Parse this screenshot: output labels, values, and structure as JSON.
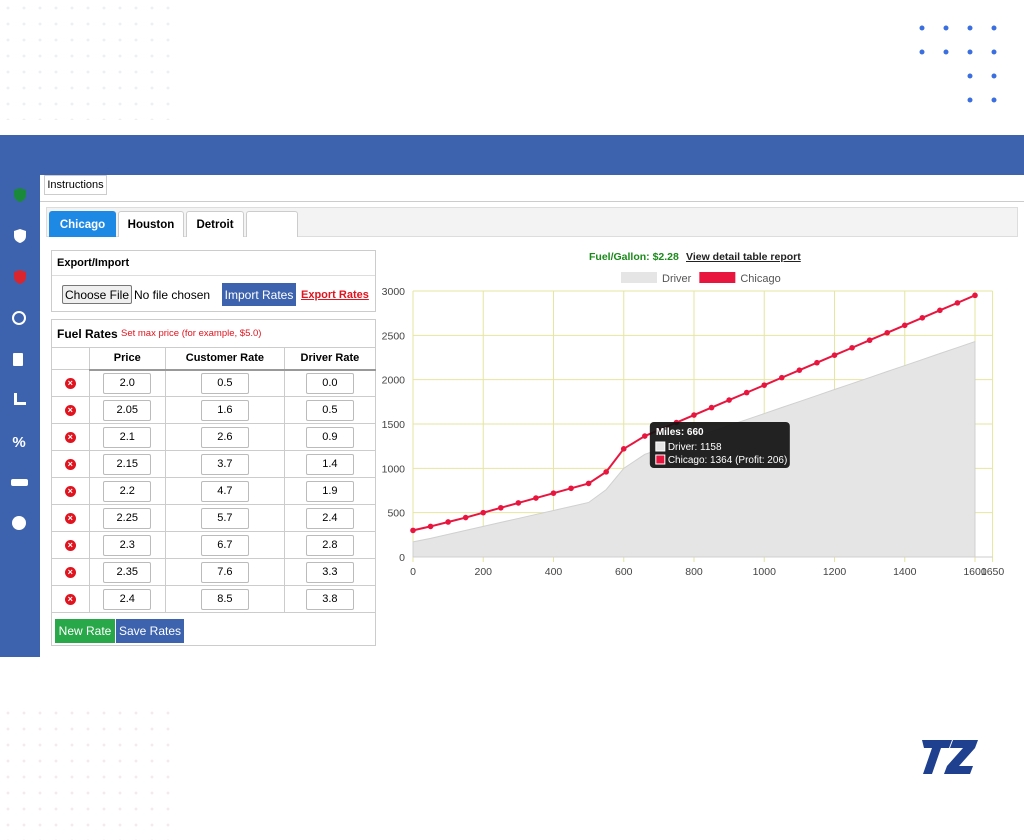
{
  "toolbar": {
    "instructions": "Instructions"
  },
  "tabs": [
    "Chicago",
    "Houston",
    "Detroit",
    ""
  ],
  "export_import": {
    "title": "Export/Import",
    "choose_file": "Choose File",
    "file_status": "No file chosen",
    "import_button": "Import Rates",
    "export_link": "Export Rates"
  },
  "fuel_rates": {
    "title": "Fuel Rates",
    "hint": "Set max price (for example, $5.0)",
    "table": {
      "header": [
        "Price",
        "Customer Rate",
        "Driver Rate"
      ],
      "rows": [
        [
          "2.0",
          "0.5",
          "0.0"
        ],
        [
          "2.05",
          "1.6",
          "0.5"
        ],
        [
          "2.1",
          "2.6",
          "0.9"
        ],
        [
          "2.15",
          "3.7",
          "1.4"
        ],
        [
          "2.2",
          "4.7",
          "1.9"
        ],
        [
          "2.25",
          "5.7",
          "2.4"
        ],
        [
          "2.3",
          "6.7",
          "2.8"
        ],
        [
          "2.35",
          "7.6",
          "3.3"
        ],
        [
          "2.4",
          "8.5",
          "3.8"
        ]
      ]
    },
    "new_button": "New Rate",
    "save_button": "Save Rates"
  },
  "report": {
    "fuel_gallon": "Fuel/Gallon: $2.28",
    "link": "View detail table report"
  },
  "chart_data": {
    "type": "line",
    "x": [
      0,
      50,
      100,
      150,
      200,
      250,
      300,
      350,
      400,
      450,
      500,
      550,
      600,
      660,
      700,
      750,
      800,
      850,
      900,
      950,
      1000,
      1050,
      1100,
      1150,
      1200,
      1250,
      1300,
      1350,
      1400,
      1450,
      1500,
      1550,
      1600
    ],
    "series": [
      {
        "name": "Driver",
        "color": "#e5e5e5",
        "fill": true,
        "values": [
          170,
          210,
          255,
          300,
          345,
          390,
          435,
          480,
          525,
          570,
          615,
          760,
          1000,
          1158,
          1212,
          1280,
          1347,
          1415,
          1483,
          1550,
          1618,
          1686,
          1753,
          1821,
          1889,
          1956,
          2024,
          2092,
          2159,
          2227,
          2295,
          2362,
          2430
        ]
      },
      {
        "name": "Chicago",
        "color": "#e8163f",
        "fill": false,
        "values": [
          300,
          345,
          395,
          445,
          500,
          555,
          610,
          665,
          720,
          775,
          830,
          960,
          1220,
          1364,
          1432,
          1516,
          1601,
          1685,
          1770,
          1854,
          1938,
          2023,
          2107,
          2191,
          2276,
          2360,
          2445,
          2529,
          2613,
          2698,
          2782,
          2866,
          2951
        ]
      }
    ],
    "xlim": [
      0,
      1650
    ],
    "xticks": [
      0,
      200,
      400,
      600,
      800,
      1000,
      1200,
      1400,
      1600,
      1650
    ],
    "ylim": [
      0,
      3000
    ],
    "yticks": [
      0,
      500,
      1000,
      1500,
      2000,
      2500,
      3000
    ],
    "grid": true,
    "grid_color": "#e6e6a0",
    "legend": "top",
    "tooltip": {
      "title": "Miles: 660",
      "lines": [
        "Driver: 1158",
        "Chicago: 1364 (Profit: 206)"
      ],
      "index": 13
    }
  }
}
